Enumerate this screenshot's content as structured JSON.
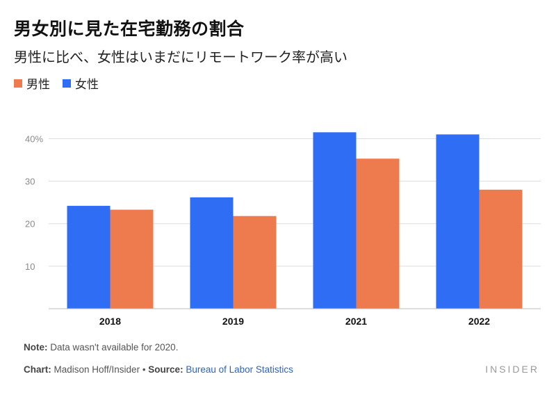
{
  "colors": {
    "male": "#ee7b4e",
    "female": "#2f6df5",
    "grid": "#dddddd",
    "axis": "#bbbbbb"
  },
  "chart_data": {
    "type": "bar",
    "title": "男女別に見た在宅勤務の割合",
    "subtitle": "男性に比べ、女性はいまだにリモートワーク率が高い",
    "categories": [
      "2018",
      "2019",
      "2021",
      "2022"
    ],
    "series": [
      {
        "key": "female",
        "name": "女性",
        "values": [
          24.2,
          26.2,
          41.5,
          41.0
        ]
      },
      {
        "key": "male",
        "name": "男性",
        "values": [
          23.3,
          21.8,
          35.3,
          28.0
        ]
      }
    ],
    "legend_order": [
      "male",
      "female"
    ],
    "yticks": [
      {
        "value": 10,
        "label": "10"
      },
      {
        "value": 20,
        "label": "20"
      },
      {
        "value": 30,
        "label": "30"
      },
      {
        "value": 40,
        "label": "40%"
      }
    ],
    "ylim": [
      0,
      44
    ],
    "xlabel": "",
    "ylabel": "",
    "grid": true,
    "legend_position": "top-left"
  },
  "footer": {
    "note_label": "Note:",
    "note_text": " Data wasn't available for 2020.",
    "chart_label": "Chart:",
    "chart_text": " Madison Hoff/Insider • ",
    "source_label": "Source:",
    "source_link": " Bureau of Labor Statistics",
    "brand": "INSIDER"
  }
}
